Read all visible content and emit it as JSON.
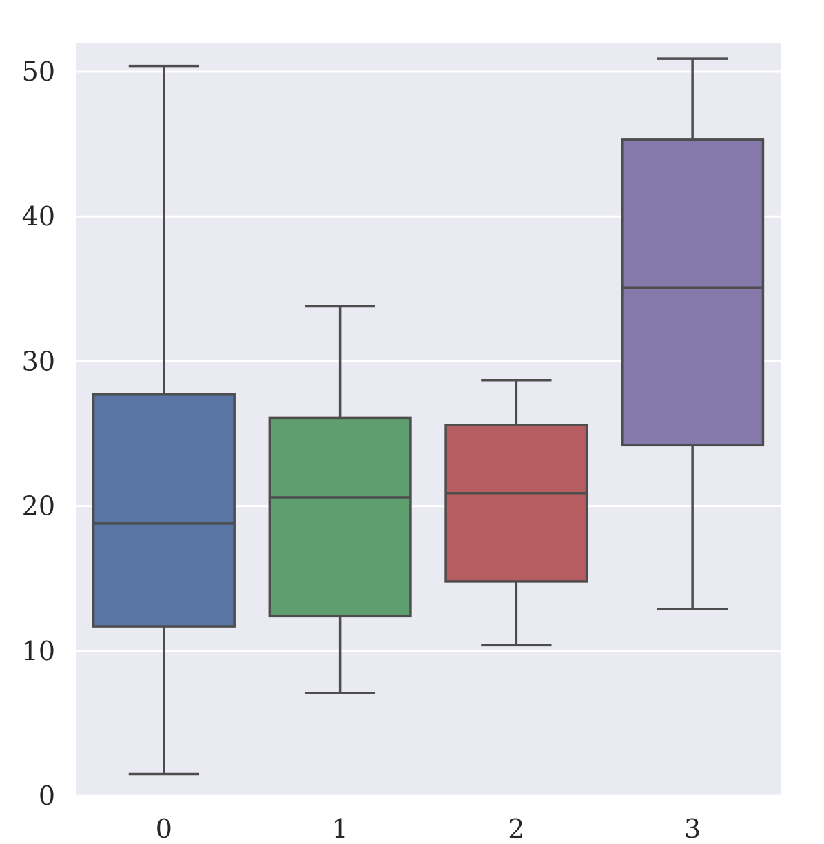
{
  "chart_data": {
    "type": "box",
    "categories": [
      "0",
      "1",
      "2",
      "3"
    ],
    "boxes": [
      {
        "category": "0",
        "whisker_low": 1.5,
        "q1": 11.7,
        "median": 18.8,
        "q3": 27.7,
        "whisker_high": 50.4,
        "color": "#5875a4"
      },
      {
        "category": "1",
        "whisker_low": 7.1,
        "q1": 12.4,
        "median": 20.6,
        "q3": 26.1,
        "whisker_high": 33.8,
        "color": "#5f9e6e"
      },
      {
        "category": "2",
        "whisker_low": 10.4,
        "q1": 14.8,
        "median": 20.9,
        "q3": 25.6,
        "whisker_high": 28.7,
        "color": "#b55d60"
      },
      {
        "category": "3",
        "whisker_low": 12.9,
        "q1": 24.2,
        "median": 35.1,
        "q3": 45.3,
        "whisker_high": 50.9,
        "color": "#857aab"
      }
    ],
    "yticks": [
      0,
      10,
      20,
      30,
      40,
      50
    ],
    "ytick_labels": [
      "0",
      "10",
      "20",
      "30",
      "40",
      "50"
    ],
    "ylim": [
      0,
      52
    ],
    "title": "",
    "xlabel": "",
    "ylabel": "",
    "grid": "horizontal",
    "background_color": "#eaeaf2",
    "line_color": "#4d4d4d"
  }
}
